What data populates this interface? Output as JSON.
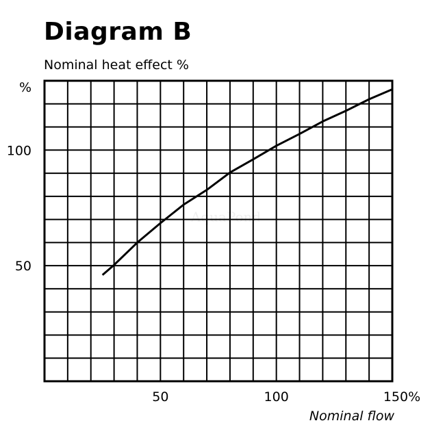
{
  "chart_data": {
    "type": "line",
    "title": "Diagram B",
    "subtitle": "Nominal heat effect %",
    "xlabel": "Nominal flow",
    "ylabel": "%",
    "xlim": [
      0,
      150
    ],
    "ylim": [
      0,
      130
    ],
    "grid": true,
    "grid_step": {
      "x": 10,
      "y": 10
    },
    "x_ticks": [
      {
        "value": 50,
        "label": "50"
      },
      {
        "value": 100,
        "label": "100"
      },
      {
        "value": 150,
        "label": "150%"
      }
    ],
    "y_ticks": [
      {
        "value": 50,
        "label": "50"
      },
      {
        "value": 100,
        "label": "100"
      }
    ],
    "watermark": "AquaPond",
    "series": [
      {
        "color": "#000000",
        "x": [
          25,
          30,
          40,
          50,
          60,
          70,
          80,
          90,
          100,
          110,
          120,
          130,
          140,
          150
        ],
        "y": [
          46,
          50.3,
          60,
          68.4,
          76.4,
          82.8,
          90.3,
          96,
          101.9,
          107,
          112.4,
          117,
          122,
          126.3
        ]
      }
    ]
  }
}
